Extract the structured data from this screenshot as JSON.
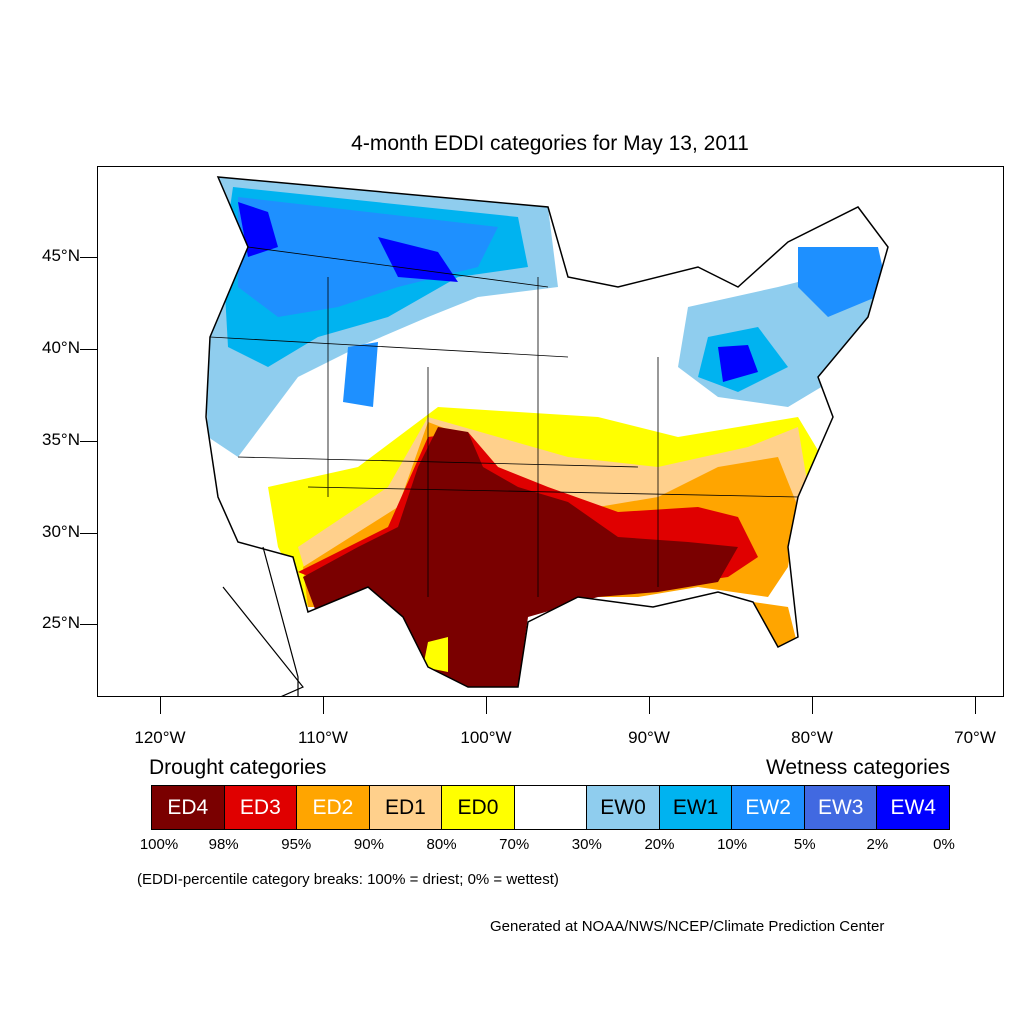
{
  "title": "4-month EDDI categories for May 13, 2011",
  "map": {
    "lat_labels": [
      "45°N",
      "40°N",
      "35°N",
      "30°N",
      "25°N"
    ],
    "lon_labels": [
      "120°W",
      "110°W",
      "100°W",
      "90°W",
      "80°W",
      "70°W"
    ]
  },
  "legend": {
    "drought_heading": "Drought categories",
    "wetness_heading": "Wetness categories",
    "categories": [
      {
        "label": "ED4",
        "color": "#7a0000",
        "text_color": "#ffffff"
      },
      {
        "label": "ED3",
        "color": "#e00000",
        "text_color": "#ffffff"
      },
      {
        "label": "ED2",
        "color": "#ffa500",
        "text_color": "#ffffff"
      },
      {
        "label": "ED1",
        "color": "#ffd08c",
        "text_color": "#000000"
      },
      {
        "label": "ED0",
        "color": "#ffff00",
        "text_color": "#000000"
      },
      {
        "label": "",
        "color": "#ffffff",
        "text_color": "#000000"
      },
      {
        "label": "EW0",
        "color": "#8fcdee",
        "text_color": "#000000"
      },
      {
        "label": "EW1",
        "color": "#00b3f0",
        "text_color": "#000000"
      },
      {
        "label": "EW2",
        "color": "#1e90ff",
        "text_color": "#ffffff"
      },
      {
        "label": "EW3",
        "color": "#4169e1",
        "text_color": "#ffffff"
      },
      {
        "label": "EW4",
        "color": "#0000ff",
        "text_color": "#ffffff"
      }
    ],
    "percentiles": [
      "100%",
      "98%",
      "95%",
      "90%",
      "80%",
      "70%",
      "30%",
      "20%",
      "10%",
      "5%",
      "2%",
      "0%"
    ]
  },
  "note": "(EDDI-percentile category breaks: 100% = driest; 0% = wettest)",
  "credit": "Generated at NOAA/NWS/NCEP/Climate Prediction Center"
}
